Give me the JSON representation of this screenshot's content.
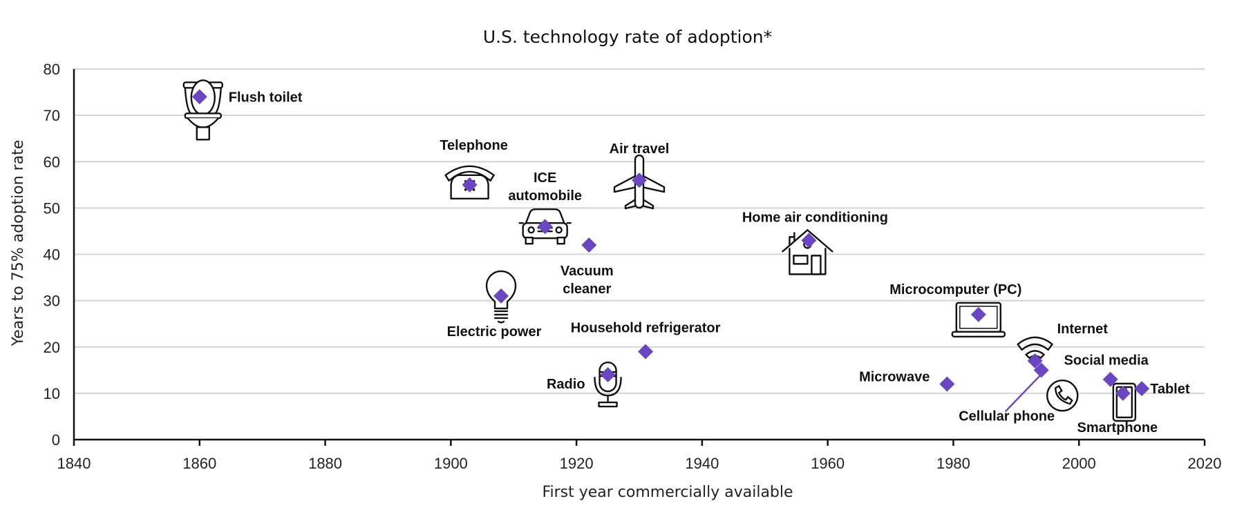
{
  "chart_data": {
    "type": "scatter",
    "title": "U.S. technology rate of adoption*",
    "xlabel": "First year commercially available",
    "ylabel": "Years to 75% adoption rate",
    "xlim": [
      1840,
      2020
    ],
    "ylim": [
      0,
      80
    ],
    "xticks": [
      1840,
      1860,
      1880,
      1900,
      1920,
      1940,
      1960,
      1980,
      2000,
      2020
    ],
    "yticks": [
      0,
      10,
      20,
      30,
      40,
      50,
      60,
      70,
      80
    ],
    "grid": "horizontal",
    "marker": "diamond",
    "marker_color": "#6B46C1",
    "points": [
      {
        "name": "Flush toilet",
        "x": 1860,
        "y": 74,
        "icon": "toilet-icon"
      },
      {
        "name": "Telephone",
        "x": 1903,
        "y": 55,
        "icon": "telephone-icon"
      },
      {
        "name": "Electric power",
        "x": 1908,
        "y": 31,
        "icon": "lightbulb-icon"
      },
      {
        "name": "ICE automobile",
        "x": 1915,
        "y": 46,
        "icon": "car-icon"
      },
      {
        "name": "Vacuum cleaner",
        "x": 1922,
        "y": 42,
        "icon": ""
      },
      {
        "name": "Radio",
        "x": 1925,
        "y": 14,
        "icon": "microphone-icon"
      },
      {
        "name": "Air travel",
        "x": 1930,
        "y": 56,
        "icon": "airplane-icon"
      },
      {
        "name": "Household refrigerator",
        "x": 1931,
        "y": 19,
        "icon": ""
      },
      {
        "name": "Home air conditioning",
        "x": 1957,
        "y": 43,
        "icon": "house-icon"
      },
      {
        "name": "Microwave",
        "x": 1979,
        "y": 12,
        "icon": ""
      },
      {
        "name": "Microcomputer (PC)",
        "x": 1984,
        "y": 27,
        "icon": "laptop-icon"
      },
      {
        "name": "Internet",
        "x": 1993,
        "y": 17,
        "icon": "wifi-icon"
      },
      {
        "name": "Cellular phone",
        "x": 1994,
        "y": 15,
        "icon": "phone-handset-icon"
      },
      {
        "name": "Social media",
        "x": 2005,
        "y": 13,
        "icon": ""
      },
      {
        "name": "Smartphone",
        "x": 2007,
        "y": 10,
        "icon": "smartphone-icon"
      },
      {
        "name": "Tablet",
        "x": 2010,
        "y": 11,
        "icon": ""
      }
    ]
  }
}
